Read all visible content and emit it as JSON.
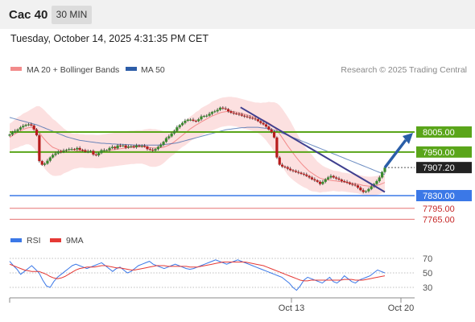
{
  "header": {
    "symbol": "Cac 40",
    "timeframe": "30 MIN",
    "datetime": "Tuesday, October 14, 2025 4:31:35 PM CET"
  },
  "legend": {
    "ma20": "MA 20 + Bollinger Bands",
    "ma50": "MA 50",
    "copyright": "Research © 2025 Trading Central",
    "rsi": "RSI",
    "ma9": "9MA"
  },
  "colors": {
    "ma20": "#f28b8b",
    "ma50": "#2d5da8",
    "bollinger_fill": "#fbdada",
    "candle_up": "#3a8a2e",
    "candle_down": "#b71c1c",
    "resistance": "#5aa51a",
    "support": "#3b78e7",
    "target_line": "#e57373",
    "arrow": "#2a5ea8",
    "rsi": "#3b78e7",
    "rsi_ma": "#e53935"
  },
  "chart_data": [
    {
      "type": "candlestick",
      "title": "",
      "y_range": [
        7740,
        8050
      ],
      "levels": [
        {
          "value": 8005.0,
          "label": "8005.00",
          "kind": "resistance"
        },
        {
          "value": 7950.0,
          "label": "7950.00",
          "kind": "resistance"
        },
        {
          "value": 7907.2,
          "label": "7907.20",
          "kind": "current"
        },
        {
          "value": 7830.0,
          "label": "7830.00",
          "kind": "support"
        },
        {
          "value": 7795.0,
          "label": "7795.00",
          "kind": "target"
        },
        {
          "value": 7765.0,
          "label": "7765.00",
          "kind": "target"
        }
      ],
      "close_series": [
        7998,
        8004,
        8008,
        8012,
        8018,
        8022,
        8025,
        8026,
        8023,
        8012,
        7996,
        7925,
        7915,
        7918,
        7926,
        7935,
        7942,
        7946,
        7952,
        7950,
        7954,
        7956,
        7958,
        7958,
        7957,
        7961,
        7956,
        7955,
        7951,
        7952,
        7953,
        7943,
        7941,
        7947,
        7955,
        7955,
        7955,
        7961,
        7964,
        7960,
        7968,
        7967,
        7968,
        7962,
        7965,
        7966,
        7963,
        7968,
        7966,
        7967,
        7965,
        7958,
        7956,
        7954,
        7958,
        7964,
        7970,
        7978,
        7988,
        7993,
        8001,
        8008,
        8018,
        8024,
        8030,
        8036,
        8039,
        8039,
        8036,
        8035,
        8040,
        8048,
        8049,
        8050,
        8055,
        8060,
        8062,
        8066,
        8072,
        8070,
        8068,
        8062,
        8058,
        8056,
        8055,
        8053,
        8050,
        8048,
        8046,
        8044,
        8042,
        8040,
        8035,
        8030,
        8026,
        8020,
        8012,
        8005,
        7990,
        7935,
        7915,
        7910,
        7908,
        7904,
        7900,
        7898,
        7895,
        7893,
        7890,
        7888,
        7884,
        7880,
        7875,
        7872,
        7868,
        7862,
        7868,
        7875,
        7880,
        7884,
        7880,
        7877,
        7874,
        7870,
        7868,
        7866,
        7862,
        7860,
        7858,
        7852,
        7845,
        7840,
        7842,
        7848,
        7855,
        7862,
        7870,
        7880,
        7895,
        7907
      ],
      "ma20_series": [
        7990,
        7995,
        8000,
        8004,
        8008,
        8012,
        8015,
        8017,
        8018,
        8016,
        8012,
        8004,
        7993,
        7984,
        7976,
        7969,
        7963,
        7960,
        7957,
        7954,
        7953,
        7952,
        7951,
        7951,
        7952,
        7953,
        7953,
        7953,
        7952,
        7952,
        7952,
        7952,
        7951,
        7951,
        7952,
        7953,
        7954,
        7955,
        7956,
        7957,
        7958,
        7959,
        7960,
        7961,
        7962,
        7963,
        7963,
        7964,
        7964,
        7964,
        7964,
        7963,
        7962,
        7961,
        7961,
        7961,
        7962,
        7963,
        7966,
        7969,
        7973,
        7978,
        7984,
        7990,
        7996,
        8002,
        8008,
        8014,
        8019,
        8024,
        8028,
        8033,
        8037,
        8041,
        8045,
        8049,
        8052,
        8055,
        8058,
        8060,
        8061,
        8062,
        8062,
        8061,
        8060,
        8058,
        8056,
        8054,
        8052,
        8050,
        8048,
        8046,
        8044,
        8041,
        8038,
        8034,
        8030,
        8025,
        8019,
        8010,
        8000,
        7989,
        7978,
        7967,
        7957,
        7947,
        7937,
        7928,
        7919,
        7911,
        7904,
        7897,
        7892,
        7887,
        7882,
        7878,
        7876,
        7874,
        7873,
        7872,
        7871,
        7870,
        7869,
        7868,
        7867,
        7866,
        7865,
        7864,
        7863,
        7862,
        7860,
        7858,
        7857,
        7856,
        7856,
        7857,
        7858,
        7860,
        7863,
        7866
      ],
      "ma50_series": [
        8045,
        8043,
        8041,
        8039,
        8037,
        8035,
        8033,
        8031,
        8029,
        8027,
        8025,
        8022,
        8019,
        8016,
        8013,
        8010,
        8007,
        8004,
        8001,
        7998,
        7995,
        7992,
        7990,
        7988,
        7986,
        7984,
        7982,
        7981,
        7980,
        7979,
        7978,
        7977,
        7976,
        7975,
        7974,
        7974,
        7973,
        7973,
        7972,
        7972,
        7971,
        7971,
        7971,
        7970,
        7970,
        7970,
        7969,
        7969,
        7969,
        7969,
        7969,
        7969,
        7969,
        7969,
        7969,
        7969,
        7970,
        7970,
        7971,
        7972,
        7973,
        7974,
        7975,
        7977,
        7979,
        7981,
        7983,
        7985,
        7987,
        7989,
        7991,
        7993,
        7995,
        7997,
        7999,
        8001,
        8003,
        8005,
        8007,
        8009,
        8011,
        8012,
        8013,
        8014,
        8015,
        8016,
        8017,
        8017,
        8018,
        8018,
        8018,
        8018,
        8018,
        8017,
        8016,
        8015,
        8014,
        8012,
        8010,
        8008,
        8005,
        8002,
        7999,
        7996,
        7993,
        7990,
        7987,
        7984,
        7981,
        7978,
        7975,
        7972,
        7969,
        7966,
        7963,
        7960,
        7957,
        7954,
        7951,
        7948,
        7945,
        7942,
        7939,
        7936,
        7933,
        7930,
        7927,
        7924,
        7921,
        7918,
        7915,
        7912,
        7909,
        7906,
        7903,
        7900,
        7897,
        7894,
        7891,
        7888
      ],
      "bb_width_series": [
        38,
        38,
        40,
        42,
        42,
        44,
        44,
        46,
        50,
        56,
        64,
        72,
        78,
        80,
        80,
        80,
        78,
        76,
        72,
        68,
        62,
        58,
        54,
        50,
        48,
        48,
        46,
        46,
        46,
        46,
        46,
        46,
        46,
        46,
        46,
        46,
        46,
        46,
        46,
        46,
        46,
        46,
        46,
        46,
        46,
        46,
        46,
        46,
        46,
        46,
        48,
        50,
        52,
        52,
        52,
        50,
        48,
        44,
        40,
        36,
        34,
        34,
        32,
        32,
        32,
        34,
        34,
        34,
        34,
        36,
        36,
        38,
        38,
        38,
        38,
        40,
        40,
        40,
        40,
        40,
        40,
        40,
        40,
        40,
        40,
        40,
        40,
        40,
        40,
        40,
        40,
        40,
        42,
        44,
        48,
        52,
        58,
        62,
        68,
        74,
        78,
        80,
        80,
        80,
        78,
        74,
        70,
        66,
        62,
        58,
        54,
        52,
        50,
        46,
        42,
        40,
        36,
        34,
        32,
        30,
        28,
        28,
        28,
        26,
        26,
        26,
        26,
        26,
        26,
        26,
        26,
        26,
        26,
        26,
        26,
        26,
        26,
        26,
        26,
        26
      ],
      "trendline": {
        "from": {
          "index": 112,
          "value": 8073
        },
        "to": {
          "index": 182,
          "value": 7840
        }
      },
      "arrow": {
        "from": {
          "value": 7907.2
        },
        "to": {
          "value": 8005
        }
      },
      "x_ticks": [
        "Oct 13",
        "Oct 20"
      ]
    },
    {
      "type": "line",
      "title": "",
      "y_range": [
        20,
        80
      ],
      "y_ticks": [
        70,
        50,
        30
      ],
      "series": [
        {
          "name": "RSI",
          "values": [
            66,
            60,
            55,
            48,
            52,
            56,
            60,
            55,
            50,
            40,
            32,
            30,
            38,
            44,
            48,
            52,
            56,
            60,
            62,
            60,
            58,
            56,
            58,
            60,
            62,
            64,
            60,
            56,
            52,
            56,
            58,
            54,
            50,
            52,
            56,
            60,
            62,
            64,
            66,
            62,
            60,
            58,
            56,
            58,
            60,
            62,
            60,
            58,
            56,
            55,
            56,
            58,
            60,
            62,
            64,
            66,
            68,
            66,
            64,
            62,
            64,
            66,
            68,
            66,
            64,
            62,
            60,
            58,
            56,
            54,
            52,
            50,
            48,
            46,
            44,
            40,
            36,
            30,
            26,
            32,
            40,
            44,
            42,
            40,
            38,
            36,
            40,
            44,
            38,
            36,
            40,
            46,
            42,
            38,
            36,
            40,
            42,
            44,
            46,
            50,
            54,
            52,
            50
          ]
        },
        {
          "name": "9MA",
          "values": [
            62,
            60,
            58,
            56,
            54,
            53,
            52,
            52,
            52,
            50,
            48,
            45,
            43,
            42,
            43,
            45,
            48,
            51,
            54,
            56,
            57,
            58,
            58,
            58,
            59,
            60,
            60,
            59,
            58,
            57,
            57,
            56,
            55,
            54,
            54,
            55,
            56,
            57,
            58,
            59,
            60,
            60,
            60,
            59,
            59,
            59,
            59,
            59,
            59,
            58,
            58,
            58,
            59,
            60,
            61,
            62,
            63,
            64,
            65,
            65,
            65,
            65,
            65,
            65,
            65,
            64,
            63,
            62,
            61,
            60,
            58,
            56,
            54,
            52,
            50,
            48,
            46,
            44,
            42,
            40,
            39,
            39,
            40,
            40,
            40,
            40,
            40,
            40,
            40,
            40,
            40,
            41,
            41,
            41,
            40,
            40,
            40,
            41,
            42,
            43,
            44,
            45,
            46
          ]
        }
      ]
    }
  ]
}
